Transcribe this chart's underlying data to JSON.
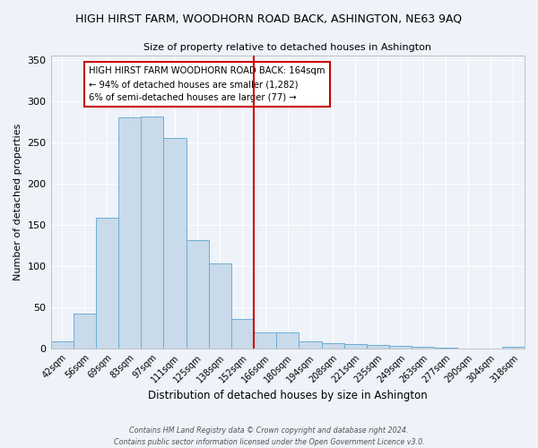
{
  "title": "HIGH HIRST FARM, WOODHORN ROAD BACK, ASHINGTON, NE63 9AQ",
  "subtitle": "Size of property relative to detached houses in Ashington",
  "xlabel": "Distribution of detached houses by size in Ashington",
  "ylabel": "Number of detached properties",
  "bar_color": "#c9daea",
  "bar_edge_color": "#6aaed6",
  "background_color": "#eef2f9",
  "grid_color": "#ffffff",
  "categories": [
    "42sqm",
    "56sqm",
    "69sqm",
    "83sqm",
    "97sqm",
    "111sqm",
    "125sqm",
    "138sqm",
    "152sqm",
    "166sqm",
    "180sqm",
    "194sqm",
    "208sqm",
    "221sqm",
    "235sqm",
    "249sqm",
    "263sqm",
    "277sqm",
    "290sqm",
    "304sqm",
    "318sqm"
  ],
  "values": [
    9,
    42,
    159,
    281,
    282,
    256,
    132,
    103,
    36,
    20,
    20,
    9,
    7,
    6,
    4,
    3,
    2,
    1,
    0,
    0,
    2
  ],
  "vline_index": 9,
  "vline_color": "#cc0000",
  "annotation_title": "HIGH HIRST FARM WOODHORN ROAD BACK: 164sqm",
  "annotation_line1": "← 94% of detached houses are smaller (1,282)",
  "annotation_line2": "6% of semi-detached houses are larger (77) →",
  "annotation_box_color": "#cc0000",
  "ylim": [
    0,
    355
  ],
  "yticks": [
    0,
    50,
    100,
    150,
    200,
    250,
    300,
    350
  ],
  "footer1": "Contains HM Land Registry data © Crown copyright and database right 2024.",
  "footer2": "Contains public sector information licensed under the Open Government Licence v3.0."
}
